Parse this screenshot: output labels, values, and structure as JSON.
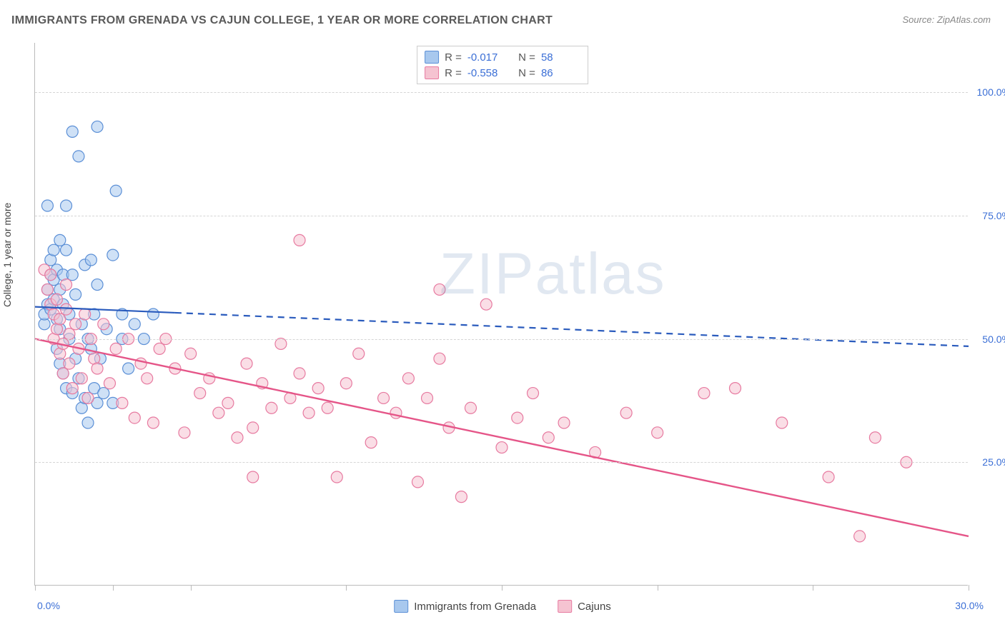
{
  "title": "IMMIGRANTS FROM GRENADA VS CAJUN COLLEGE, 1 YEAR OR MORE CORRELATION CHART",
  "source": "Source: ZipAtlas.com",
  "watermark": "ZIPatlas",
  "yaxis_title": "College, 1 year or more",
  "chart": {
    "type": "scatter-with-regression",
    "xlim": [
      0,
      30
    ],
    "ylim": [
      0,
      110
    ],
    "x_tick_positions": [
      0,
      2.5,
      5,
      10,
      15,
      20,
      25,
      30
    ],
    "x_visible_labels": {
      "0": "0.0%",
      "30": "30.0%"
    },
    "y_gridlines": [
      25,
      50,
      75,
      100
    ],
    "y_labels": {
      "25": "25.0%",
      "50": "50.0%",
      "75": "75.0%",
      "100": "100.0%"
    },
    "background": "#ffffff",
    "grid_color": "#d5d5d5",
    "axis_color": "#bbbbbb",
    "marker_radius": 8,
    "marker_stroke_width": 1.2,
    "series": [
      {
        "name": "Immigrants from Grenada",
        "color_fill": "#a8c8ee",
        "color_stroke": "#5b8fd6",
        "R": "-0.017",
        "N": "58",
        "regression": {
          "x1": 0,
          "y1": 56.5,
          "x2": 30,
          "y2": 48.5,
          "solid_until_x": 4.5,
          "stroke": "#2a5bbd",
          "width": 2.2
        },
        "points": [
          [
            0.3,
            53
          ],
          [
            0.3,
            55
          ],
          [
            0.4,
            57
          ],
          [
            0.4,
            60
          ],
          [
            0.5,
            56
          ],
          [
            0.5,
            63
          ],
          [
            0.5,
            66
          ],
          [
            0.6,
            58
          ],
          [
            0.6,
            62
          ],
          [
            0.6,
            68
          ],
          [
            0.7,
            54
          ],
          [
            0.7,
            48
          ],
          [
            0.7,
            64
          ],
          [
            0.8,
            45
          ],
          [
            0.8,
            52
          ],
          [
            0.8,
            60
          ],
          [
            0.8,
            70
          ],
          [
            0.9,
            43
          ],
          [
            0.9,
            57
          ],
          [
            0.9,
            63
          ],
          [
            1.0,
            40
          ],
          [
            1.0,
            68
          ],
          [
            1.0,
            77
          ],
          [
            1.1,
            50
          ],
          [
            1.1,
            55
          ],
          [
            1.2,
            39
          ],
          [
            1.2,
            63
          ],
          [
            1.2,
            92
          ],
          [
            1.3,
            46
          ],
          [
            1.3,
            59
          ],
          [
            1.4,
            42
          ],
          [
            1.4,
            87
          ],
          [
            1.5,
            36
          ],
          [
            1.5,
            53
          ],
          [
            1.6,
            38
          ],
          [
            1.6,
            65
          ],
          [
            1.7,
            50
          ],
          [
            1.7,
            33
          ],
          [
            1.8,
            48
          ],
          [
            1.8,
            66
          ],
          [
            1.9,
            40
          ],
          [
            1.9,
            55
          ],
          [
            2.0,
            37
          ],
          [
            2.0,
            61
          ],
          [
            2.1,
            46
          ],
          [
            2.2,
            39
          ],
          [
            2.3,
            52
          ],
          [
            2.5,
            67
          ],
          [
            2.5,
            37
          ],
          [
            2.6,
            80
          ],
          [
            2.8,
            55
          ],
          [
            2.8,
            50
          ],
          [
            3.0,
            44
          ],
          [
            3.2,
            53
          ],
          [
            3.5,
            50
          ],
          [
            3.8,
            55
          ],
          [
            2.0,
            93
          ],
          [
            0.4,
            77
          ]
        ]
      },
      {
        "name": "Cajuns",
        "color_fill": "#f5c3d1",
        "color_stroke": "#e77aa0",
        "R": "-0.558",
        "N": "86",
        "regression": {
          "x1": 0,
          "y1": 50,
          "x2": 30,
          "y2": 10,
          "solid_until_x": 30,
          "stroke": "#e55588",
          "width": 2.4
        },
        "points": [
          [
            0.3,
            64
          ],
          [
            0.4,
            60
          ],
          [
            0.5,
            57
          ],
          [
            0.5,
            63
          ],
          [
            0.6,
            55
          ],
          [
            0.6,
            50
          ],
          [
            0.7,
            58
          ],
          [
            0.7,
            52
          ],
          [
            0.8,
            47
          ],
          [
            0.8,
            54
          ],
          [
            0.9,
            49
          ],
          [
            0.9,
            43
          ],
          [
            1.0,
            56
          ],
          [
            1.0,
            61
          ],
          [
            1.1,
            45
          ],
          [
            1.1,
            51
          ],
          [
            1.2,
            40
          ],
          [
            1.3,
            53
          ],
          [
            1.4,
            48
          ],
          [
            1.5,
            42
          ],
          [
            1.6,
            55
          ],
          [
            1.7,
            38
          ],
          [
            1.8,
            50
          ],
          [
            1.9,
            46
          ],
          [
            2.0,
            44
          ],
          [
            2.2,
            53
          ],
          [
            2.4,
            41
          ],
          [
            2.6,
            48
          ],
          [
            2.8,
            37
          ],
          [
            3.0,
            50
          ],
          [
            3.2,
            34
          ],
          [
            3.4,
            45
          ],
          [
            3.6,
            42
          ],
          [
            3.8,
            33
          ],
          [
            4.0,
            48
          ],
          [
            4.2,
            50
          ],
          [
            4.5,
            44
          ],
          [
            4.8,
            31
          ],
          [
            5.0,
            47
          ],
          [
            5.3,
            39
          ],
          [
            5.6,
            42
          ],
          [
            5.9,
            35
          ],
          [
            6.2,
            37
          ],
          [
            6.5,
            30
          ],
          [
            6.8,
            45
          ],
          [
            7.0,
            32
          ],
          [
            7.3,
            41
          ],
          [
            7.6,
            36
          ],
          [
            7.9,
            49
          ],
          [
            7.0,
            22
          ],
          [
            8.2,
            38
          ],
          [
            8.5,
            43
          ],
          [
            8.5,
            70
          ],
          [
            8.8,
            35
          ],
          [
            9.1,
            40
          ],
          [
            9.4,
            36
          ],
          [
            9.7,
            22
          ],
          [
            10.0,
            41
          ],
          [
            10.4,
            47
          ],
          [
            10.8,
            29
          ],
          [
            11.2,
            38
          ],
          [
            11.6,
            35
          ],
          [
            12.0,
            42
          ],
          [
            12.3,
            21
          ],
          [
            12.6,
            38
          ],
          [
            13.0,
            46
          ],
          [
            13.0,
            60
          ],
          [
            13.3,
            32
          ],
          [
            13.7,
            18
          ],
          [
            14.0,
            36
          ],
          [
            14.5,
            57
          ],
          [
            15.0,
            28
          ],
          [
            15.5,
            34
          ],
          [
            16.0,
            39
          ],
          [
            16.5,
            30
          ],
          [
            17.0,
            33
          ],
          [
            18.0,
            27
          ],
          [
            19.0,
            35
          ],
          [
            20.0,
            31
          ],
          [
            21.5,
            39
          ],
          [
            22.5,
            40
          ],
          [
            24.0,
            33
          ],
          [
            25.5,
            22
          ],
          [
            26.5,
            10
          ],
          [
            27.0,
            30
          ],
          [
            28.0,
            25
          ]
        ]
      }
    ]
  },
  "legend_bottom": [
    {
      "label": "Immigrants from Grenada",
      "fill": "#a8c8ee",
      "stroke": "#5b8fd6"
    },
    {
      "label": "Cajuns",
      "fill": "#f5c3d1",
      "stroke": "#e77aa0"
    }
  ]
}
